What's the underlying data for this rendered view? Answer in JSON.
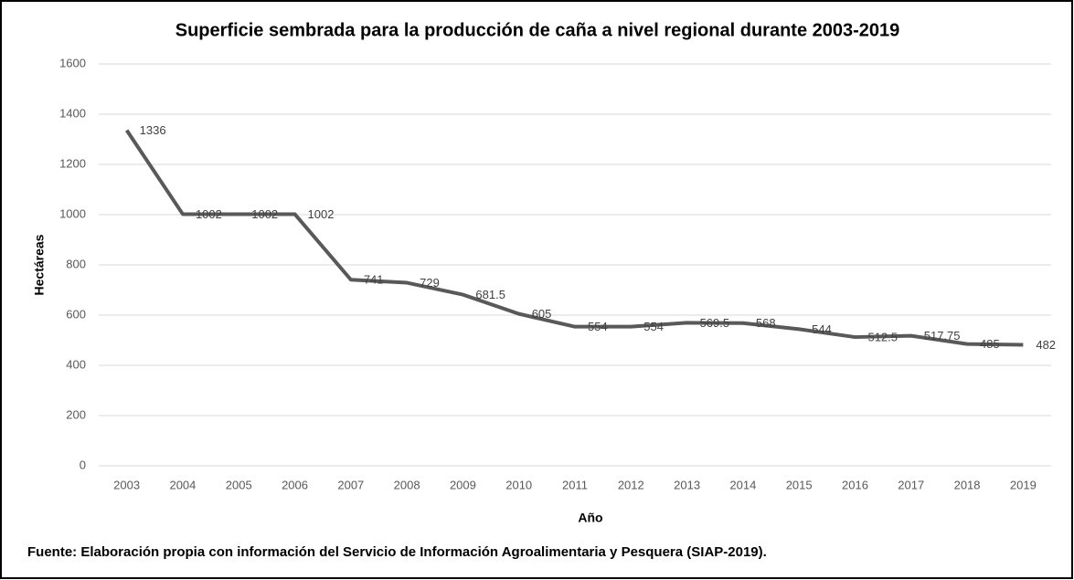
{
  "chart_data": {
    "type": "line",
    "title": "Superficie sembrada para la producción de caña a nivel regional durante 2003-2019",
    "x_label": "Año",
    "y_label": "Hectáreas",
    "source": "Fuente: Elaboración propia con información del Servicio de Información Agroalimentaria y Pesquera (SIAP-2019).",
    "categories": [
      "2003",
      "2004",
      "2005",
      "2006",
      "2007",
      "2008",
      "2009",
      "2010",
      "2011",
      "2012",
      "2013",
      "2014",
      "2015",
      "2016",
      "2017",
      "2018",
      "2019"
    ],
    "series": [
      {
        "color": "#595959",
        "values": [
          1336,
          1002,
          1002,
          1002,
          741,
          729,
          681.5,
          605,
          554,
          554,
          569.5,
          568,
          544,
          512.5,
          517.75,
          485,
          482
        ]
      }
    ],
    "ylim": [
      0,
      1600
    ],
    "yticks": [
      0,
      200,
      400,
      600,
      800,
      1000,
      1200,
      1400,
      1600
    ],
    "grid": true
  }
}
